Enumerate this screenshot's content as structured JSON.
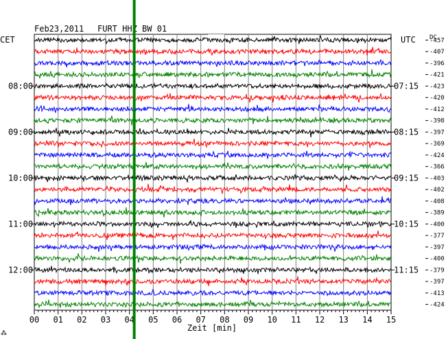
{
  "header": {
    "date": "Feb23,2011",
    "station": "FURT HHZ BW 01",
    "left_tz": "CET",
    "right_tz": "UTC",
    "dc_label": "DC"
  },
  "chart_data": {
    "type": "line",
    "title": "Feb23,2011   FURT HHZ BW 01",
    "xlabel": "Zeit [min]",
    "x_ticks": [
      "00",
      "01",
      "02",
      "03",
      "04",
      "05",
      "06",
      "07",
      "08",
      "09",
      "10",
      "11",
      "12",
      "13",
      "14",
      "15"
    ],
    "xlim": [
      0,
      15
    ],
    "grid": true,
    "left_time_labels": [
      "08:00",
      "09:00",
      "10:00",
      "11:00",
      "12:00"
    ],
    "right_time_labels": [
      "07:15",
      "08:15",
      "09:15",
      "10:15",
      "11:15"
    ],
    "trace_colors": [
      "#000000",
      "#ff0000",
      "#0000ff",
      "#008000"
    ],
    "dc_offsets": [
      "-457",
      "-407",
      "-396",
      "-421",
      "-423",
      "-420",
      "-412",
      "-398",
      "-397",
      "-369",
      "-424",
      "-366",
      "-403",
      "-402",
      "-408",
      "-389",
      "-400",
      "-377",
      "-397",
      "-400",
      "-379",
      "-397",
      "-413",
      "-424"
    ],
    "marker": {
      "minute": 4.2,
      "color": "#008000"
    }
  },
  "corner_mark": "⁂"
}
